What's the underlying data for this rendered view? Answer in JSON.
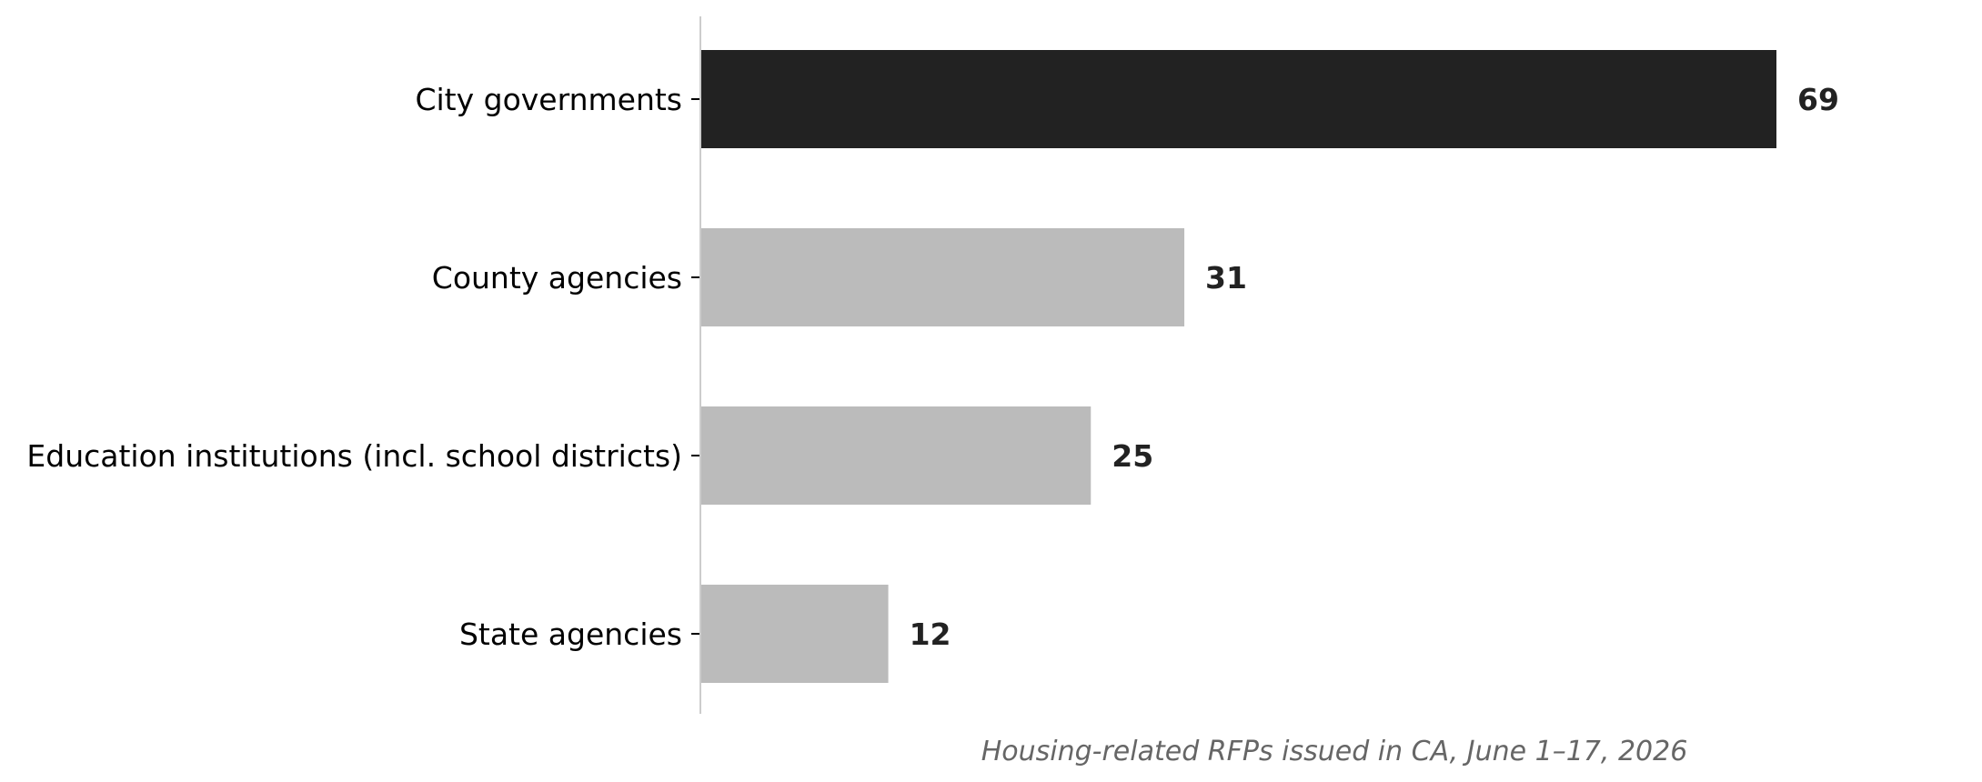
{
  "chart_data": {
    "type": "bar",
    "orientation": "horizontal",
    "categories": [
      "City governments",
      "County agencies",
      "Education institutions (incl. school districts)",
      "State agencies"
    ],
    "values": [
      69,
      31,
      25,
      12
    ],
    "value_labels": [
      "69",
      "31",
      "25",
      "12"
    ],
    "highlight_index": 0,
    "colors": {
      "highlight": "#222222",
      "default": "#bbbbbb",
      "axis": "#cccccc",
      "tick": "#000000"
    },
    "xlim": [
      0,
      69
    ],
    "grid": false,
    "legend": "none",
    "caption": "Housing-related RFPs issued in CA, June 1–17, 2026"
  }
}
